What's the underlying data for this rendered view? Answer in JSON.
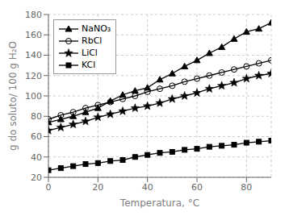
{
  "chart_data": {
    "type": "line",
    "title": "",
    "xlabel": "Temperatura, °C",
    "ylabel": "g do soluto/ 100 g H₂O",
    "x": [
      0,
      5,
      10,
      15,
      20,
      25,
      30,
      35,
      40,
      45,
      50,
      55,
      60,
      65,
      70,
      75,
      80,
      85,
      90
    ],
    "xlim": [
      0,
      90
    ],
    "ylim": [
      20,
      180
    ],
    "xticks": [
      0,
      20,
      40,
      60,
      80
    ],
    "yticks": [
      20,
      40,
      60,
      80,
      100,
      120,
      140,
      160,
      180
    ],
    "grid": true,
    "legend": "upper left",
    "series": [
      {
        "name": "NaNO₃",
        "color": "black",
        "marker": "triangle",
        "line_style": "solid",
        "values": [
          74,
          77,
          80,
          84,
          88,
          95,
          101,
          105,
          108,
          116,
          122,
          129,
          135,
          142,
          148,
          156,
          163,
          166,
          172
        ]
      },
      {
        "name": "RbCl",
        "color": "black",
        "marker": "open_circle",
        "line_style": "solid",
        "values": [
          77,
          81,
          84,
          88,
          91,
          94,
          97,
          100,
          104,
          107,
          110,
          114,
          117,
          120,
          123,
          126,
          129,
          132,
          135
        ]
      },
      {
        "name": "LiCl",
        "color": "black",
        "marker": "star",
        "line_style": "solid",
        "values": [
          66,
          69,
          72,
          75,
          79,
          82,
          85,
          88,
          90,
          93,
          97,
          100,
          103,
          107,
          110,
          113,
          117,
          120,
          122
        ]
      },
      {
        "name": "KCl",
        "color": "black",
        "marker": "square",
        "line_style": "solid",
        "values": [
          27,
          29,
          31,
          33,
          34,
          36,
          37,
          40,
          42,
          44,
          45,
          47,
          48,
          50,
          51,
          52,
          54,
          55,
          56
        ]
      }
    ]
  }
}
